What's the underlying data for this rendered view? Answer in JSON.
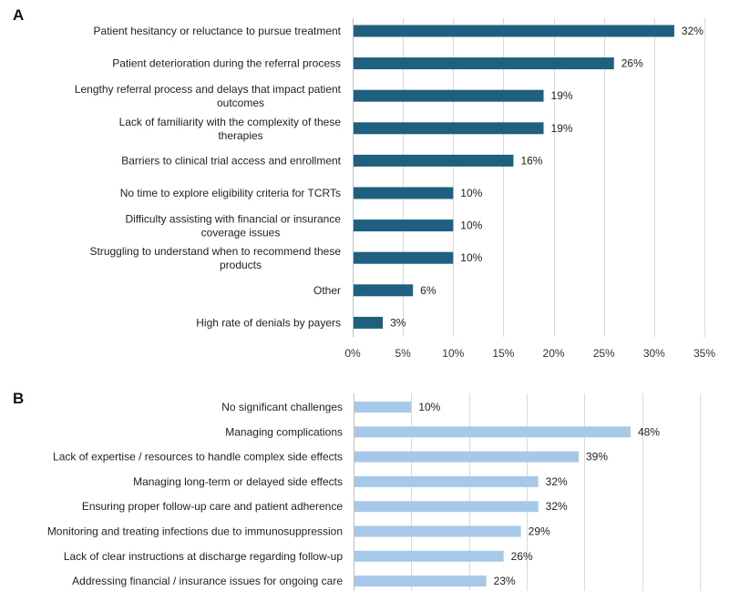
{
  "chart_data": [
    {
      "type": "bar",
      "orientation": "horizontal",
      "panel_label": "A",
      "categories": [
        "Patient hesitancy or reluctance to pursue treatment",
        "Patient deterioration during the referral process",
        "Lengthy referral process and delays that impact patient outcomes",
        "Lack of familiarity with the complexity of these therapies",
        "Barriers to clinical trial access and enrollment",
        "No time to explore eligibility criteria for TCRTs",
        "Difficulty assisting with financial or insurance coverage issues",
        "Struggling to understand when to recommend these products",
        "Other",
        "High rate of denials by payers"
      ],
      "values": [
        32,
        26,
        19,
        19,
        16,
        10,
        10,
        10,
        6,
        3
      ],
      "value_labels": [
        "32%",
        "26%",
        "19%",
        "19%",
        "16%",
        "10%",
        "10%",
        "10%",
        "6%",
        "3%"
      ],
      "xlim": [
        0,
        35
      ],
      "xticks": [
        "0%",
        "5%",
        "10%",
        "15%",
        "20%",
        "25%",
        "30%",
        "35%"
      ],
      "bar_color": "#1f5f80",
      "grid": true,
      "title": "",
      "xlabel": "",
      "ylabel": ""
    },
    {
      "type": "bar",
      "orientation": "horizontal",
      "panel_label": "B",
      "categories": [
        "No significant challenges",
        "Managing complications",
        "Lack of expertise / resources to handle complex side effects",
        "Managing long-term or delayed side effects",
        "Ensuring proper follow-up care and patient adherence",
        "Monitoring and treating infections due to immunosuppression",
        "Lack of clear instructions at discharge regarding follow-up",
        "Addressing financial / insurance issues for ongoing care"
      ],
      "values": [
        10,
        48,
        39,
        32,
        32,
        29,
        26,
        23
      ],
      "value_labels": [
        "10%",
        "48%",
        "39%",
        "32%",
        "32%",
        "29%",
        "26%",
        "23%"
      ],
      "xlim": [
        0,
        60
      ],
      "bar_color": "#a6c9ea",
      "grid": true,
      "title": "",
      "xlabel": "",
      "ylabel": ""
    }
  ]
}
